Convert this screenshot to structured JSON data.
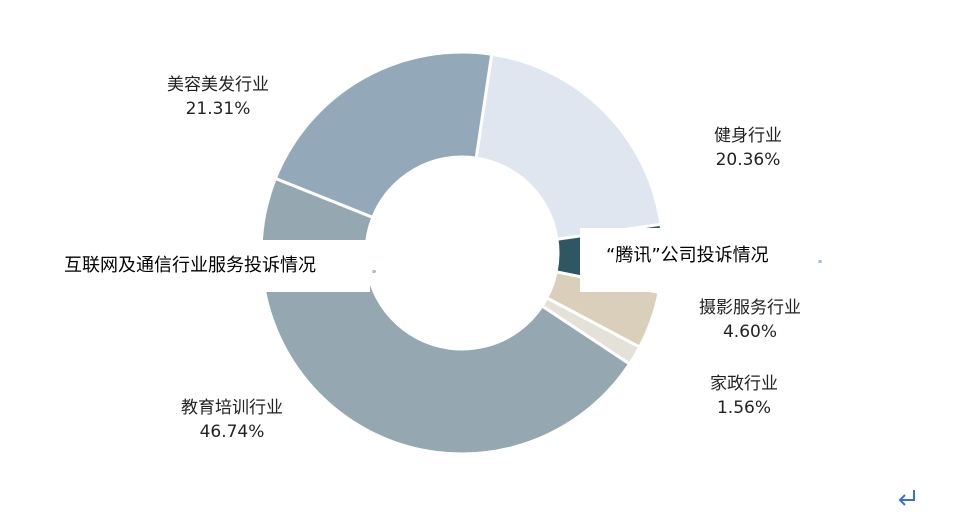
{
  "chart_data": {
    "type": "pie",
    "categories": [
      "健身行业",
      null,
      "摄影服务行业",
      "家政行业",
      "教育培训行业",
      "美容美发行业"
    ],
    "values": [
      20.36,
      5.43,
      4.6,
      1.56,
      46.74,
      21.31
    ],
    "value_labels": [
      "20.36%",
      null,
      "4.60%",
      "1.56%",
      "46.74%",
      "21.31%"
    ],
    "colors": [
      "#dfe6ef",
      "#2e5763",
      "#d9cfbb",
      "#e4e1d8",
      "#95a7b0",
      "#93a9ba"
    ]
  },
  "captions": [
    "互联网及通信行业服务投诉情况",
    "“腾讯”公司投诉情况"
  ]
}
